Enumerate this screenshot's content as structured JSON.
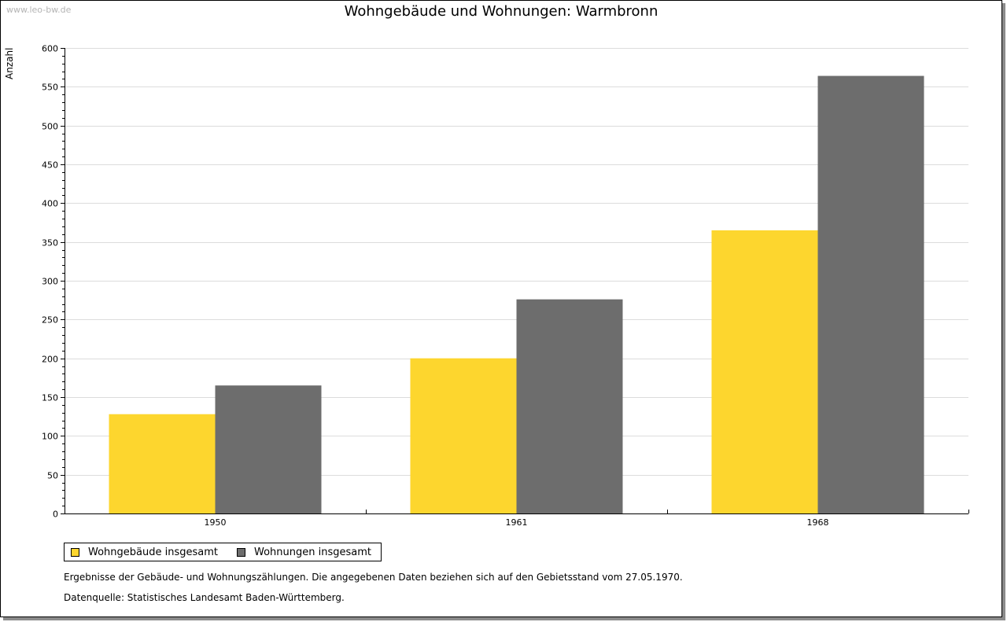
{
  "watermark": "www.leo-bw.de",
  "chart_data": {
    "type": "bar",
    "title": "Wohngebäude und Wohnungen: Warmbronn",
    "xlabel": "",
    "ylabel": "Anzahl",
    "categories": [
      "1950",
      "1961",
      "1968"
    ],
    "series": [
      {
        "name": "Wohngebäude insgesamt",
        "color": "#fdd62e",
        "values": [
          128,
          200,
          365
        ]
      },
      {
        "name": "Wohnungen insgesamt",
        "color": "#6d6d6d",
        "values": [
          165,
          276,
          564
        ]
      }
    ],
    "ylim": [
      0,
      600
    ],
    "yticks": [
      "0",
      "50",
      "100",
      "150",
      "200",
      "250",
      "300",
      "350",
      "400",
      "450",
      "500",
      "550",
      "600"
    ],
    "grid": true,
    "legend": "bottom-left"
  },
  "notes": {
    "line1": "Ergebnisse der Gebäude- und Wohnungszählungen. Die angegebenen Daten beziehen sich auf den Gebietsstand vom 27.05.1970.",
    "line2": "Datenquelle: Statistisches Landesamt Baden-Württemberg."
  }
}
